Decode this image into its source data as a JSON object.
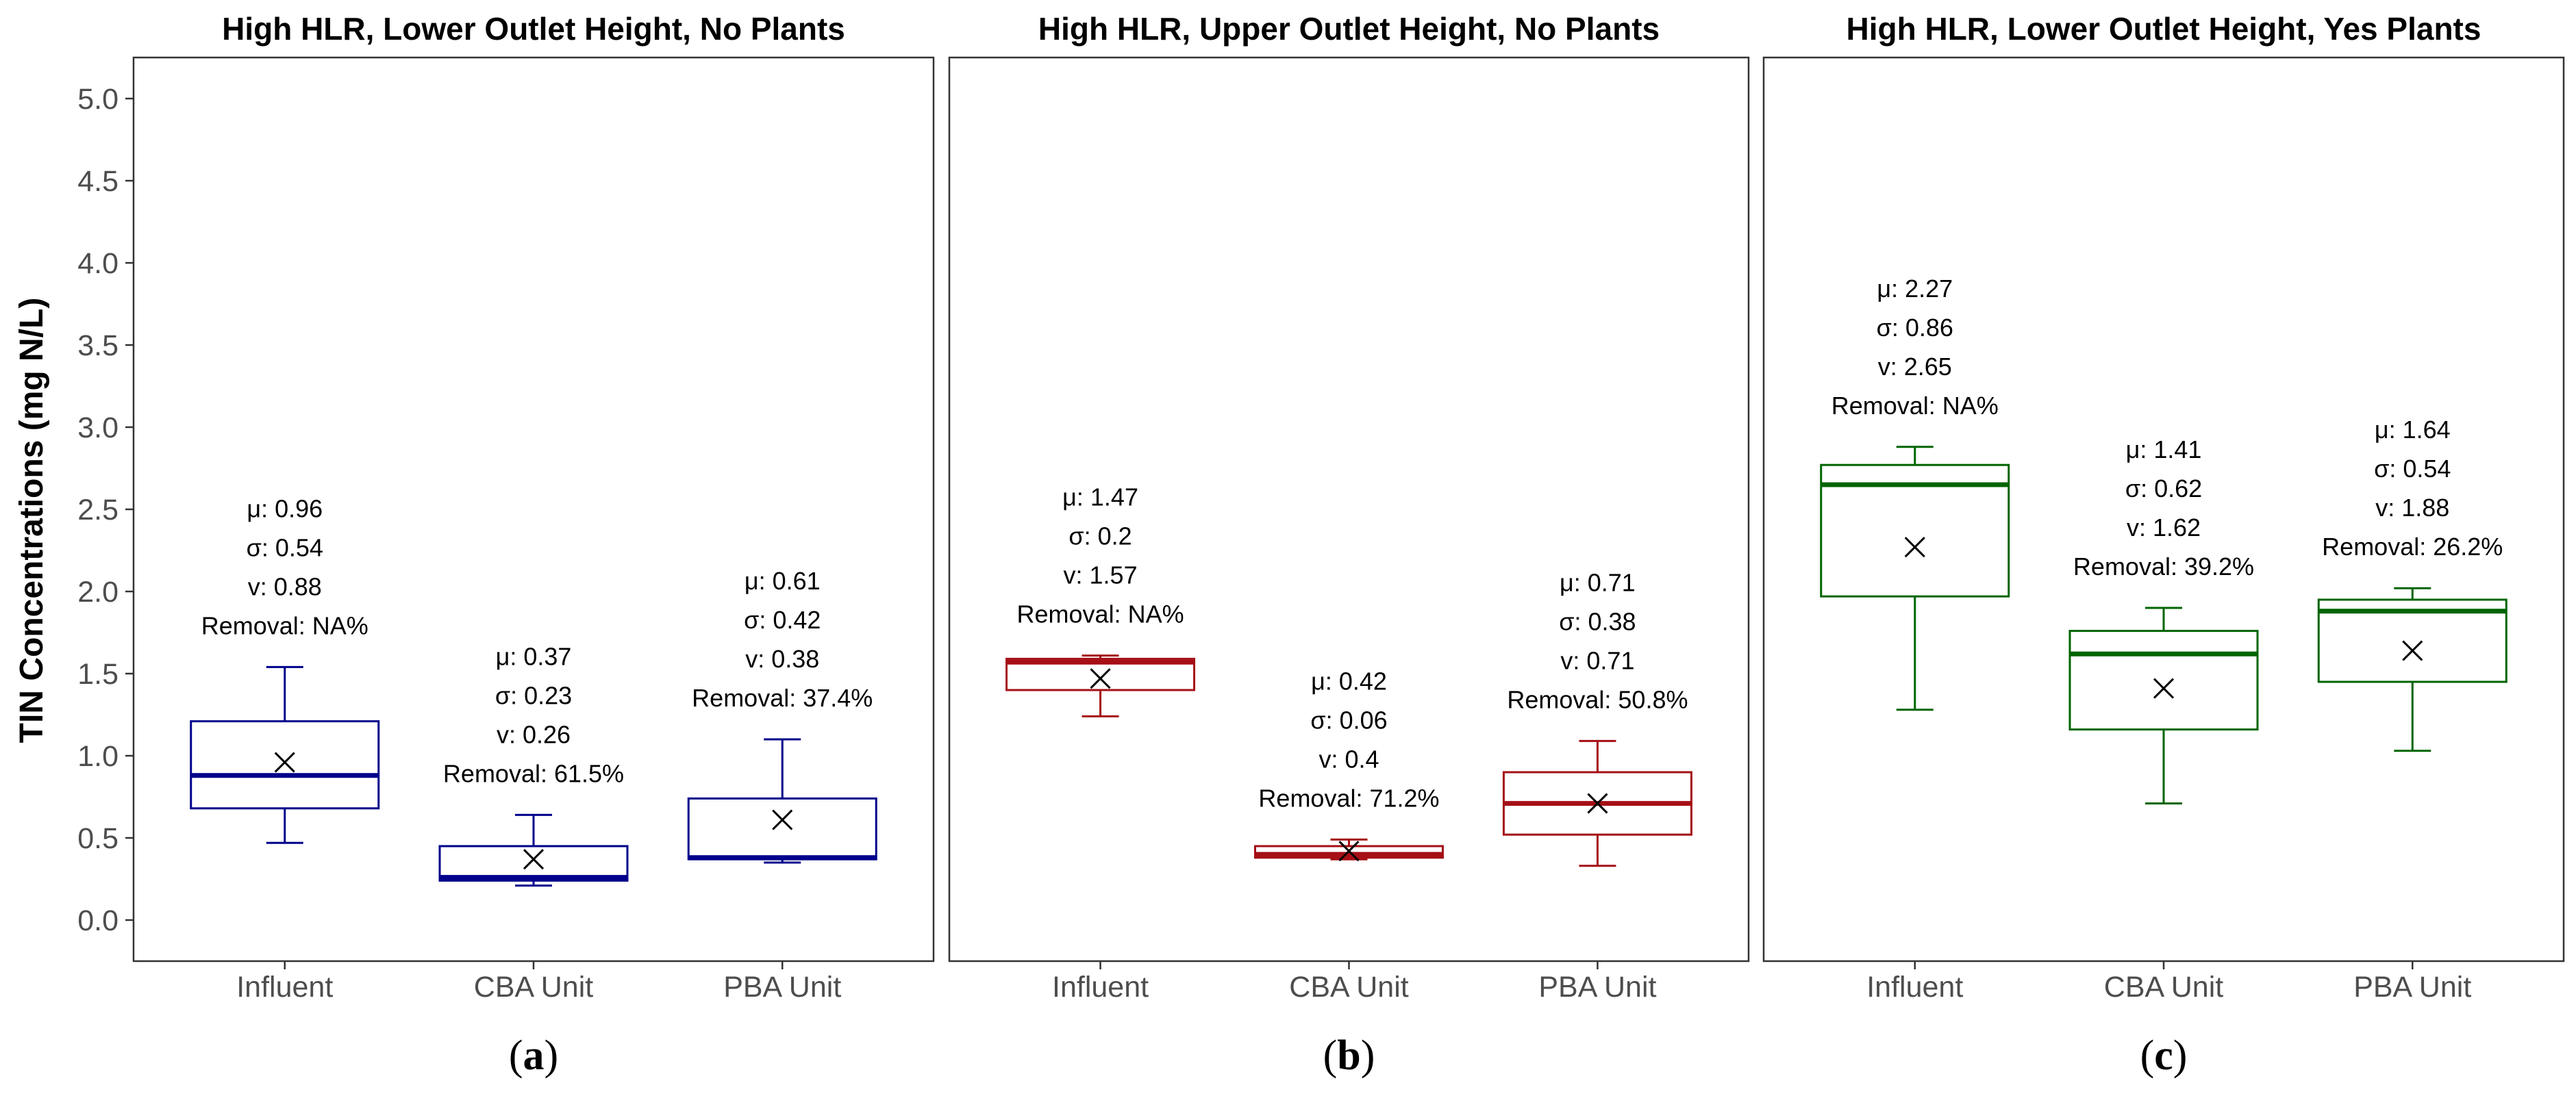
{
  "chart_data": {
    "type": "boxplot",
    "ylabel": "TIN Concentrations (mg N/L)",
    "ylim": [
      -0.25,
      5.25
    ],
    "yticks": [
      "0.0",
      "0.5",
      "1.0",
      "1.5",
      "2.0",
      "2.5",
      "3.0",
      "3.5",
      "4.0",
      "4.5",
      "5.0"
    ],
    "categories": [
      "Influent",
      "CBA Unit",
      "PBA Unit"
    ],
    "panels": [
      {
        "title": "High HLR, Lower Outlet Height, No Plants",
        "label": "a",
        "color": "#00008b",
        "boxes": [
          {
            "category": "Influent",
            "whisker_low": 0.47,
            "q1": 0.68,
            "median": 0.88,
            "q3": 1.21,
            "whisker_high": 1.54,
            "mean": 0.96,
            "stats": [
              "μ: 0.96",
              "σ: 0.54",
              "v: 0.88",
              "Removal: NA%"
            ]
          },
          {
            "category": "CBA Unit",
            "whisker_low": 0.21,
            "q1": 0.24,
            "median": 0.26,
            "q3": 0.45,
            "whisker_high": 0.64,
            "mean": 0.37,
            "stats": [
              "μ: 0.37",
              "σ: 0.23",
              "v: 0.26",
              "Removal: 61.5%"
            ]
          },
          {
            "category": "PBA Unit",
            "whisker_low": 0.35,
            "q1": 0.37,
            "median": 0.38,
            "q3": 0.74,
            "whisker_high": 1.1,
            "mean": 0.61,
            "stats": [
              "μ: 0.61",
              "σ: 0.42",
              "v: 0.38",
              "Removal: 37.4%"
            ]
          }
        ]
      },
      {
        "title": "High HLR, Upper Outlet Height, No Plants",
        "label": "b",
        "color": "#a50f15",
        "boxes": [
          {
            "category": "Influent",
            "whisker_low": 1.24,
            "q1": 1.4,
            "median": 1.57,
            "q3": 1.59,
            "whisker_high": 1.61,
            "mean": 1.47,
            "stats": [
              "μ: 1.47",
              "σ: 0.2",
              "v: 1.57",
              "Removal: NA%"
            ]
          },
          {
            "category": "CBA Unit",
            "whisker_low": 0.37,
            "q1": 0.38,
            "median": 0.4,
            "q3": 0.45,
            "whisker_high": 0.49,
            "mean": 0.42,
            "stats": [
              "μ: 0.42",
              "σ: 0.06",
              "v: 0.4",
              "Removal: 71.2%"
            ]
          },
          {
            "category": "PBA Unit",
            "whisker_low": 0.33,
            "q1": 0.52,
            "median": 0.71,
            "q3": 0.9,
            "whisker_high": 1.09,
            "mean": 0.71,
            "stats": [
              "μ: 0.71",
              "σ: 0.38",
              "v: 0.71",
              "Removal: 50.8%"
            ]
          }
        ]
      },
      {
        "title": "High HLR, Lower Outlet Height, Yes Plants",
        "label": "c",
        "color": "#006400",
        "boxes": [
          {
            "category": "Influent",
            "whisker_low": 1.28,
            "q1": 1.97,
            "median": 2.65,
            "q3": 2.77,
            "whisker_high": 2.88,
            "mean": 2.27,
            "stats": [
              "μ: 2.27",
              "σ: 0.86",
              "v: 2.65",
              "Removal: NA%"
            ]
          },
          {
            "category": "CBA Unit",
            "whisker_low": 0.71,
            "q1": 1.16,
            "median": 1.62,
            "q3": 1.76,
            "whisker_high": 1.9,
            "mean": 1.41,
            "stats": [
              "μ: 1.41",
              "σ: 0.62",
              "v: 1.62",
              "Removal: 39.2%"
            ]
          },
          {
            "category": "PBA Unit",
            "whisker_low": 1.03,
            "q1": 1.45,
            "median": 1.88,
            "q3": 1.95,
            "whisker_high": 2.02,
            "mean": 1.64,
            "stats": [
              "μ: 1.64",
              "σ: 0.54",
              "v: 1.88",
              "Removal: 26.2%"
            ]
          }
        ]
      }
    ]
  }
}
